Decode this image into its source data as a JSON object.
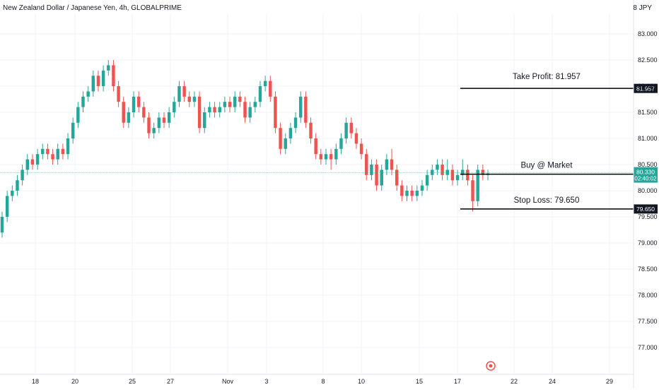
{
  "header": {
    "symbol_title": "New Zealand Dollar / Japanese Yen, 4h, GLOBALPRIME",
    "currency": "8 JPY"
  },
  "colors": {
    "up": "#26a69a",
    "down": "#ef5350",
    "grid": "#f0f3fa",
    "axis_text": "#131722",
    "line": "#000000",
    "current_bg": "#26a69a"
  },
  "chart_data": {
    "type": "candlestick",
    "y_ticks": [
      "83.000",
      "82.500",
      "82.000",
      "81.500",
      "81.000",
      "80.500",
      "80.000",
      "79.500",
      "79.000",
      "78.500",
      "78.000",
      "77.500",
      "77.000"
    ],
    "ylim": [
      76.5,
      83.3
    ],
    "x_ticks": [
      "18",
      "20",
      "25",
      "27",
      "Nov",
      "3",
      "8",
      "10",
      "15",
      "17",
      "22",
      "24",
      "29"
    ],
    "candles": [
      [
        79.2,
        79.5,
        79.1,
        79.6
      ],
      [
        79.5,
        79.9,
        79.4,
        80.0
      ],
      [
        79.9,
        80.0,
        79.8,
        80.1
      ],
      [
        80.0,
        80.2,
        79.9,
        80.3
      ],
      [
        80.2,
        80.4,
        80.1,
        80.5
      ],
      [
        80.4,
        80.6,
        80.3,
        80.7
      ],
      [
        80.6,
        80.5,
        80.4,
        80.7
      ],
      [
        80.5,
        80.7,
        80.4,
        80.8
      ],
      [
        80.7,
        80.8,
        80.6,
        80.9
      ],
      [
        80.8,
        80.7,
        80.6,
        80.9
      ],
      [
        80.7,
        80.6,
        80.5,
        80.8
      ],
      [
        80.6,
        80.8,
        80.5,
        80.9
      ],
      [
        80.8,
        80.7,
        80.6,
        80.9
      ],
      [
        80.7,
        81.0,
        80.6,
        81.1
      ],
      [
        81.0,
        81.3,
        80.9,
        81.4
      ],
      [
        81.3,
        81.6,
        81.2,
        81.7
      ],
      [
        81.6,
        81.8,
        81.5,
        81.9
      ],
      [
        81.8,
        81.9,
        81.7,
        82.0
      ],
      [
        81.9,
        82.2,
        81.8,
        82.3
      ],
      [
        82.2,
        82.0,
        81.9,
        82.3
      ],
      [
        82.0,
        82.3,
        81.9,
        82.4
      ],
      [
        82.3,
        82.4,
        82.2,
        82.5
      ],
      [
        82.4,
        82.0,
        81.9,
        82.5
      ],
      [
        82.0,
        81.7,
        81.6,
        82.1
      ],
      [
        81.7,
        81.3,
        81.2,
        81.8
      ],
      [
        81.3,
        81.5,
        81.2,
        81.6
      ],
      [
        81.5,
        81.8,
        81.4,
        81.9
      ],
      [
        81.8,
        81.6,
        81.5,
        81.9
      ],
      [
        81.6,
        81.4,
        81.3,
        81.7
      ],
      [
        81.4,
        81.1,
        81.0,
        81.5
      ],
      [
        81.1,
        81.2,
        81.0,
        81.3
      ],
      [
        81.2,
        81.4,
        81.1,
        81.5
      ],
      [
        81.4,
        81.3,
        81.2,
        81.5
      ],
      [
        81.3,
        81.5,
        81.2,
        81.6
      ],
      [
        81.5,
        81.7,
        81.4,
        81.8
      ],
      [
        81.7,
        82.0,
        81.6,
        82.1
      ],
      [
        82.0,
        81.8,
        81.7,
        82.1
      ],
      [
        81.8,
        81.7,
        81.6,
        81.9
      ],
      [
        81.7,
        81.8,
        81.6,
        81.9
      ],
      [
        81.8,
        81.2,
        81.1,
        81.9
      ],
      [
        81.2,
        81.5,
        81.1,
        81.6
      ],
      [
        81.5,
        81.6,
        81.4,
        81.7
      ],
      [
        81.6,
        81.5,
        81.4,
        81.7
      ],
      [
        81.5,
        81.6,
        81.4,
        81.7
      ],
      [
        81.6,
        81.7,
        81.5,
        81.8
      ],
      [
        81.7,
        81.6,
        81.5,
        81.8
      ],
      [
        81.6,
        81.8,
        81.5,
        81.9
      ],
      [
        81.8,
        81.7,
        81.6,
        81.9
      ],
      [
        81.7,
        81.4,
        81.3,
        81.8
      ],
      [
        81.4,
        81.6,
        81.3,
        81.7
      ],
      [
        81.6,
        81.7,
        81.5,
        81.8
      ],
      [
        81.7,
        82.0,
        81.6,
        82.1
      ],
      [
        82.0,
        82.1,
        81.9,
        82.2
      ],
      [
        82.1,
        81.8,
        81.7,
        82.2
      ],
      [
        81.8,
        81.2,
        81.1,
        81.9
      ],
      [
        81.2,
        80.8,
        80.7,
        81.3
      ],
      [
        80.8,
        81.0,
        80.7,
        81.1
      ],
      [
        81.0,
        81.2,
        80.9,
        81.3
      ],
      [
        81.2,
        81.4,
        81.1,
        81.5
      ],
      [
        81.4,
        81.8,
        81.3,
        81.9
      ],
      [
        81.8,
        81.3,
        81.2,
        81.9
      ],
      [
        81.3,
        81.0,
        80.9,
        81.4
      ],
      [
        81.0,
        80.7,
        80.6,
        81.1
      ],
      [
        80.7,
        80.6,
        80.5,
        80.8
      ],
      [
        80.6,
        80.7,
        80.5,
        80.8
      ],
      [
        80.7,
        80.6,
        80.4,
        80.8
      ],
      [
        80.6,
        80.8,
        80.5,
        80.9
      ],
      [
        80.8,
        81.0,
        80.7,
        81.1
      ],
      [
        81.0,
        81.3,
        80.9,
        81.4
      ],
      [
        81.3,
        81.1,
        81.0,
        81.4
      ],
      [
        81.1,
        80.9,
        80.8,
        81.2
      ],
      [
        80.9,
        80.7,
        80.6,
        81.0
      ],
      [
        80.7,
        80.3,
        80.2,
        80.8
      ],
      [
        80.3,
        80.5,
        80.2,
        80.6
      ],
      [
        80.5,
        80.1,
        80.0,
        80.6
      ],
      [
        80.1,
        80.4,
        80.0,
        80.5
      ],
      [
        80.4,
        80.6,
        80.3,
        80.7
      ],
      [
        80.6,
        80.4,
        80.3,
        80.8
      ],
      [
        80.4,
        80.1,
        80.0,
        80.5
      ],
      [
        80.1,
        79.9,
        79.8,
        80.2
      ],
      [
        79.9,
        80.0,
        79.8,
        80.1
      ],
      [
        80.0,
        79.9,
        79.8,
        80.1
      ],
      [
        79.9,
        80.0,
        79.8,
        80.1
      ],
      [
        80.0,
        80.1,
        79.9,
        80.2
      ],
      [
        80.1,
        80.3,
        80.0,
        80.4
      ],
      [
        80.3,
        80.4,
        80.2,
        80.5
      ],
      [
        80.4,
        80.5,
        80.3,
        80.6
      ],
      [
        80.5,
        80.3,
        80.2,
        80.6
      ],
      [
        80.3,
        80.4,
        80.2,
        80.6
      ],
      [
        80.4,
        80.2,
        80.1,
        80.5
      ],
      [
        80.2,
        80.3,
        80.1,
        80.4
      ],
      [
        80.3,
        80.4,
        80.2,
        80.6
      ],
      [
        80.4,
        80.2,
        80.1,
        80.5
      ],
      [
        80.2,
        79.8,
        79.6,
        80.3
      ],
      [
        79.8,
        80.4,
        79.7,
        80.5
      ],
      [
        80.4,
        80.3,
        80.2,
        80.5
      ],
      [
        80.3,
        80.33,
        80.2,
        80.4
      ]
    ],
    "levels": [
      {
        "label": "Take Profit:  81.957",
        "value": 81.957,
        "tag": "81.957",
        "label_offset": 0.18
      },
      {
        "label": "Buy @ Market",
        "value": 80.316,
        "tag": "80.316",
        "label_offset": 0.12
      },
      {
        "label": "Stop Loss:  79.650",
        "value": 79.65,
        "tag": "79.650",
        "label_offset": 0.12
      }
    ],
    "current_price": {
      "value": 80.33,
      "price": "80.330",
      "countdown": "02:40:02"
    }
  }
}
